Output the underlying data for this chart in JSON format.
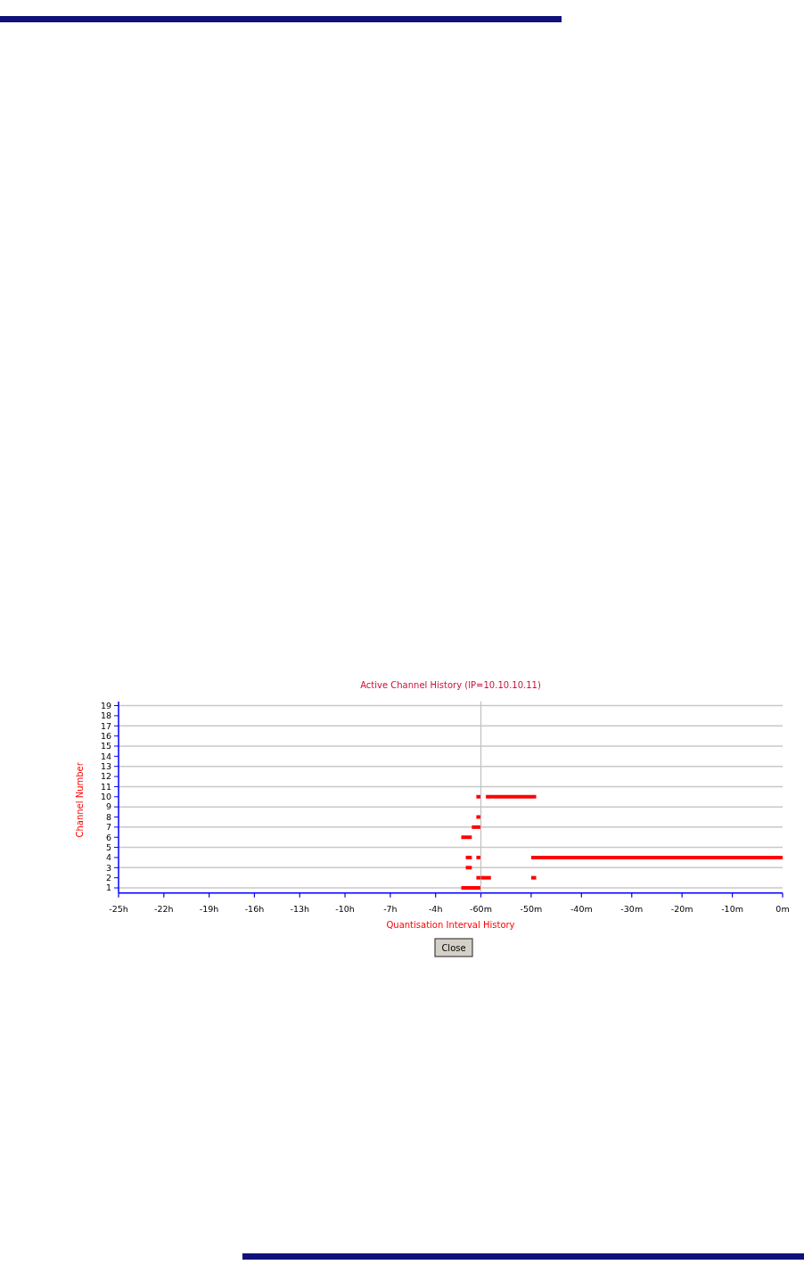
{
  "chart_data": [
    {
      "type": "line",
      "title": "Active Channel History (IP=10.10.10.11)",
      "ylabel": "Channel Number",
      "xlim": [
        -25,
        -1
      ],
      "xticks": [
        {
          "value": -25,
          "label": "-25h"
        },
        {
          "value": -22,
          "label": "-22h"
        },
        {
          "value": -19,
          "label": "-19h"
        },
        {
          "value": -16,
          "label": "-16h"
        },
        {
          "value": -13,
          "label": "-13h"
        },
        {
          "value": -10,
          "label": "-10h"
        },
        {
          "value": -7,
          "label": "-7h"
        },
        {
          "value": -4,
          "label": "-4h"
        }
      ],
      "ylim": [
        0.5,
        19.4
      ],
      "yticks": [
        1,
        2,
        3,
        4,
        5,
        6,
        7,
        8,
        9,
        10,
        11,
        12,
        13,
        14,
        15,
        16,
        17,
        18,
        19
      ],
      "grid": "y",
      "series": [
        {
          "color": "#ff0000",
          "x": [
            -1.3,
            -1
          ],
          "values": [
            10,
            10
          ]
        },
        {
          "color": "#ff0000",
          "x": [
            -1.3,
            -1
          ],
          "values": [
            8,
            8
          ]
        },
        {
          "color": "#ff0000",
          "x": [
            -1.6,
            -1
          ],
          "values": [
            7,
            7
          ]
        },
        {
          "color": "#ff0000",
          "x": [
            -2.3,
            -1.6
          ],
          "values": [
            6,
            6
          ]
        },
        {
          "color": "#ff0000",
          "x": [
            -2.0,
            -1.6
          ],
          "values": [
            4,
            4
          ]
        },
        {
          "color": "#ff0000",
          "x": [
            -1.3,
            -1
          ],
          "values": [
            4,
            4
          ]
        },
        {
          "color": "#ff0000",
          "x": [
            -2.0,
            -1.6
          ],
          "values": [
            3,
            3
          ]
        },
        {
          "color": "#ff0000",
          "x": [
            -1.3,
            -1
          ],
          "values": [
            2,
            2
          ]
        },
        {
          "color": "#ff0000",
          "x": [
            -2.3,
            -1
          ],
          "values": [
            1,
            1
          ]
        }
      ]
    },
    {
      "type": "line",
      "xlabel": "Quantisation Interval History",
      "xlim": [
        -60,
        0
      ],
      "xticks": [
        {
          "value": -60,
          "label": "-60m"
        },
        {
          "value": -50,
          "label": "-50m"
        },
        {
          "value": -40,
          "label": "-40m"
        },
        {
          "value": -30,
          "label": "-30m"
        },
        {
          "value": -20,
          "label": "-20m"
        },
        {
          "value": -10,
          "label": "-10m"
        },
        {
          "value": 0,
          "label": "0m"
        }
      ],
      "ylim": [
        0.5,
        19.4
      ],
      "yticks": [
        1,
        2,
        3,
        4,
        5,
        6,
        7,
        8,
        9,
        10,
        11,
        12,
        13,
        14,
        15,
        16,
        17,
        18,
        19
      ],
      "grid": "y",
      "tick_labels": "x",
      "annotations": [
        "Close"
      ],
      "series": [
        {
          "color": "#ff0000",
          "x": [
            -59,
            -49
          ],
          "values": [
            10,
            10
          ]
        },
        {
          "color": "#ff0000",
          "x": [
            -50,
            0
          ],
          "values": [
            4,
            4
          ]
        },
        {
          "color": "#ff0000",
          "x": [
            -60,
            -58
          ],
          "values": [
            2,
            2
          ]
        },
        {
          "color": "#ff0000",
          "x": [
            -50,
            -49
          ],
          "values": [
            2,
            2
          ]
        }
      ]
    }
  ]
}
